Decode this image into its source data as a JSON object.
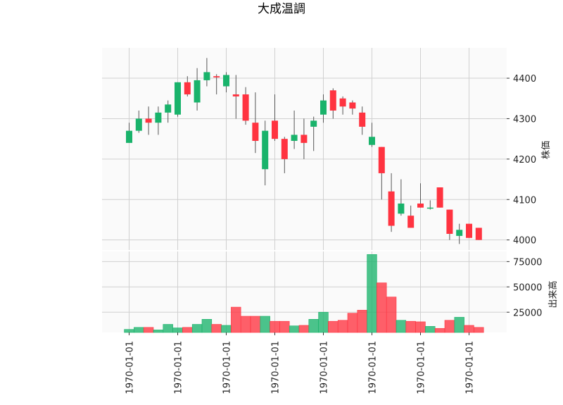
{
  "chart_data": {
    "type": "candlestick",
    "title": "大成温調",
    "price_axis": {
      "label": "株価",
      "ticks": [
        4000,
        4100,
        4200,
        4300,
        4400
      ],
      "range": [
        3975,
        4475
      ]
    },
    "volume_axis": {
      "label": "出来高",
      "ticks": [
        25000,
        50000,
        75000
      ],
      "range": [
        5000,
        85000
      ]
    },
    "x_tick_labels": [
      "1970-01-01",
      "1970-01-01",
      "1970-01-01",
      "1970-01-01",
      "1970-01-01",
      "1970-01-01",
      "1970-01-01",
      "1970-01-01"
    ],
    "up_color": "#19b36b",
    "down_color": "#ff3340",
    "grid": true,
    "candles": [
      {
        "open": 4240,
        "high": 4290,
        "low": 4240,
        "close": 4270,
        "volume": 8000
      },
      {
        "open": 4270,
        "high": 4320,
        "low": 4265,
        "close": 4300,
        "volume": 10000
      },
      {
        "open": 4300,
        "high": 4330,
        "low": 4260,
        "close": 4290,
        "volume": 10000
      },
      {
        "open": 4290,
        "high": 4330,
        "low": 4260,
        "close": 4315,
        "volume": 7500
      },
      {
        "open": 4315,
        "high": 4345,
        "low": 4290,
        "close": 4335,
        "volume": 13000
      },
      {
        "open": 4310,
        "high": 4390,
        "low": 4305,
        "close": 4390,
        "volume": 9500
      },
      {
        "open": 4390,
        "high": 4405,
        "low": 4355,
        "close": 4360,
        "volume": 10000
      },
      {
        "open": 4340,
        "high": 4425,
        "low": 4320,
        "close": 4395,
        "volume": 13000
      },
      {
        "open": 4395,
        "high": 4450,
        "low": 4380,
        "close": 4415,
        "volume": 18000
      },
      {
        "open": 4405,
        "high": 4410,
        "low": 4360,
        "close": 4402,
        "volume": 13000
      },
      {
        "open": 4380,
        "high": 4415,
        "low": 4365,
        "close": 4408,
        "volume": 12000
      },
      {
        "open": 4360,
        "high": 4408,
        "low": 4300,
        "close": 4355,
        "volume": 30000
      },
      {
        "open": 4360,
        "high": 4378,
        "low": 4285,
        "close": 4295,
        "volume": 21000
      },
      {
        "open": 4290,
        "high": 4365,
        "low": 4215,
        "close": 4245,
        "volume": 21000
      },
      {
        "open": 4175,
        "high": 4295,
        "low": 4135,
        "close": 4270,
        "volume": 21000
      },
      {
        "open": 4295,
        "high": 4360,
        "low": 4245,
        "close": 4250,
        "volume": 16000
      },
      {
        "open": 4250,
        "high": 4255,
        "low": 4165,
        "close": 4200,
        "volume": 16000
      },
      {
        "open": 4245,
        "high": 4320,
        "low": 4225,
        "close": 4260,
        "volume": 11500
      },
      {
        "open": 4260,
        "high": 4300,
        "low": 4200,
        "close": 4240,
        "volume": 12000
      },
      {
        "open": 4280,
        "high": 4305,
        "low": 4220,
        "close": 4295,
        "volume": 18000
      },
      {
        "open": 4310,
        "high": 4360,
        "low": 4290,
        "close": 4345,
        "volume": 25000
      },
      {
        "open": 4370,
        "high": 4375,
        "low": 4300,
        "close": 4320,
        "volume": 16000
      },
      {
        "open": 4350,
        "high": 4355,
        "low": 4310,
        "close": 4330,
        "volume": 17000
      },
      {
        "open": 4340,
        "high": 4345,
        "low": 4310,
        "close": 4325,
        "volume": 24000
      },
      {
        "open": 4315,
        "high": 4330,
        "low": 4260,
        "close": 4280,
        "volume": 27000
      },
      {
        "open": 4235,
        "high": 4290,
        "low": 4230,
        "close": 4255,
        "volume": 82000
      },
      {
        "open": 4230,
        "high": 4230,
        "low": 4100,
        "close": 4165,
        "volume": 54000
      },
      {
        "open": 4120,
        "high": 4165,
        "low": 4020,
        "close": 4035,
        "volume": 40000
      },
      {
        "open": 4065,
        "high": 4150,
        "low": 4060,
        "close": 4090,
        "volume": 17000
      },
      {
        "open": 4060,
        "high": 4085,
        "low": 4030,
        "close": 4030,
        "volume": 16000
      },
      {
        "open": 4090,
        "high": 4140,
        "low": 4080,
        "close": 4080,
        "volume": 15500
      },
      {
        "open": 4078,
        "high": 4098,
        "low": 4075,
        "close": 4080,
        "volume": 11000
      },
      {
        "open": 4130,
        "high": 4130,
        "low": 4080,
        "close": 4080,
        "volume": 9000
      },
      {
        "open": 4075,
        "high": 4075,
        "low": 4000,
        "close": 4015,
        "volume": 17000
      },
      {
        "open": 4010,
        "high": 4040,
        "low": 3990,
        "close": 4025,
        "volume": 20000
      },
      {
        "open": 4040,
        "high": 4040,
        "low": 4005,
        "close": 4005,
        "volume": 12000
      },
      {
        "open": 4030,
        "high": 4030,
        "low": 4000,
        "close": 4000,
        "volume": 10000
      }
    ]
  }
}
